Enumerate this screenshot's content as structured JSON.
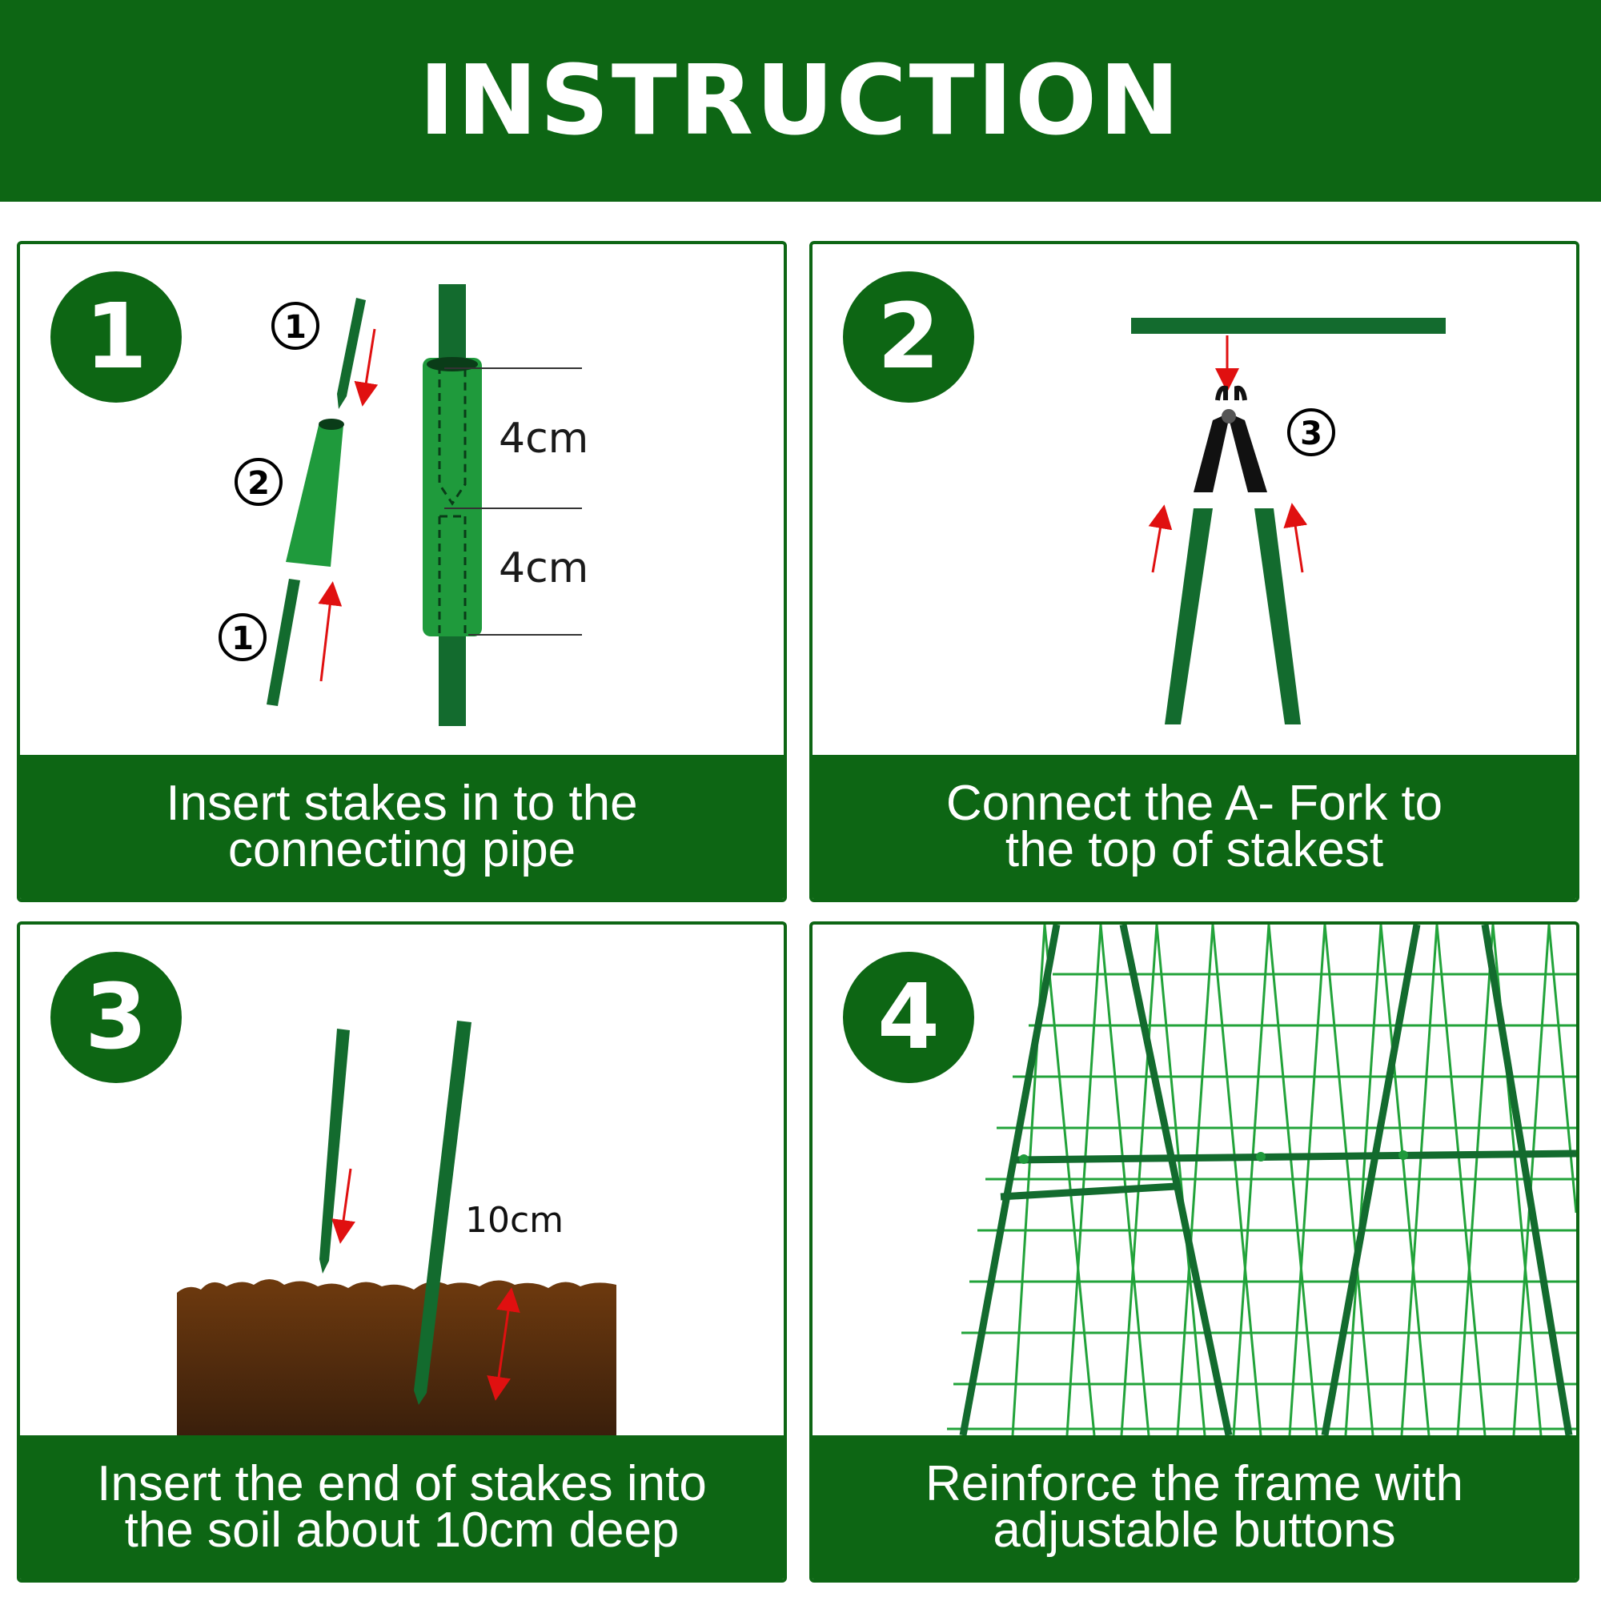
{
  "header": {
    "title": "INSTRUCTION"
  },
  "steps": [
    {
      "number": "1",
      "caption_lines": [
        "Insert stakes in to the",
        "connecting pipe"
      ],
      "part_labels": {
        "stake": "1",
        "pipe": "2"
      },
      "dimension_top": "4cm",
      "dimension_bottom": "4cm"
    },
    {
      "number": "2",
      "caption_lines": [
        "Connect the A- Fork to",
        "the top of stakest"
      ],
      "part_labels": {
        "fork": "3"
      }
    },
    {
      "number": "3",
      "caption_lines": [
        "Insert the end of stakes into",
        "the soil about 10cm deep"
      ],
      "depth_label": "10cm"
    },
    {
      "number": "4",
      "caption_lines": [
        "Reinforce the frame with",
        "adjustable buttons"
      ]
    }
  ],
  "colors": {
    "brand_green": "#0d6614",
    "stake_green": "#136b2e",
    "pipe_green": "#1f9a3c",
    "mesh_green": "#22a33a",
    "arrow_red": "#e01010",
    "soil_top": "#6e3a0e",
    "soil_bottom": "#3a1f0c"
  }
}
